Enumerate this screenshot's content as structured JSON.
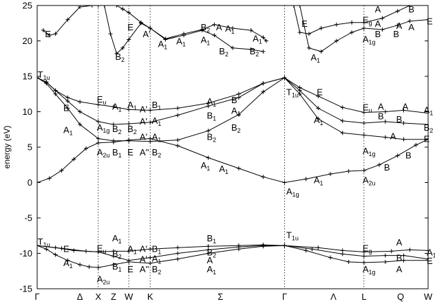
{
  "chart_data": {
    "type": "line",
    "ylabel": "energy (eV)",
    "ylim": [
      -15,
      25
    ],
    "yticks": [
      -15,
      -10,
      -5,
      0,
      5,
      10,
      15,
      20,
      25
    ],
    "kpath": {
      "labels": [
        "Γ",
        "Δ",
        "X",
        "Z",
        "W",
        "K",
        "Σ",
        "Γ",
        "Λ",
        "L",
        "Q",
        "W"
      ],
      "positions": [
        0,
        0.7,
        1.0,
        1.25,
        1.5,
        1.85,
        3.0,
        4.05,
        4.85,
        5.35,
        5.95,
        6.4
      ],
      "high_symmetry": [
        1.0,
        1.5,
        1.85,
        4.05,
        5.35
      ]
    },
    "series": [
      {
        "x": [
          0,
          0.15,
          0.3,
          0.5,
          0.7,
          0.85,
          1.0,
          1.25,
          1.5,
          1.85,
          2.3,
          2.8,
          3.3,
          3.7,
          4.05,
          4.4,
          4.8,
          5.1,
          5.35,
          5.7,
          6.0,
          6.4
        ],
        "y": [
          -8.9,
          -9.4,
          -10.2,
          -11.0,
          -11.6,
          -11.9,
          -12.0,
          -11.6,
          -11.2,
          -11.4,
          -10.8,
          -10.0,
          -9.4,
          -9.0,
          -8.9,
          -9.6,
          -10.6,
          -11.2,
          -11.3,
          -11.2,
          -11.0,
          -11.0
        ]
      },
      {
        "x": [
          0,
          0.3,
          0.6,
          1.0,
          1.25,
          1.5,
          1.85,
          2.3,
          2.8,
          3.3,
          3.7,
          4.05,
          4.5,
          5.0,
          5.35,
          5.7,
          6.0,
          6.4
        ],
        "y": [
          -8.9,
          -9.2,
          -9.6,
          -9.8,
          -10.4,
          -11.0,
          -10.6,
          -10.0,
          -9.5,
          -9.1,
          -8.9,
          -8.9,
          -9.4,
          -10.1,
          -10.4,
          -10.3,
          -10.3,
          -10.8
        ]
      },
      {
        "x": [
          0,
          0.4,
          0.8,
          1.0,
          1.25,
          1.5,
          1.85,
          2.3,
          2.8,
          3.3,
          3.7,
          4.05,
          4.6,
          5.0,
          5.35,
          5.8,
          6.1,
          6.4
        ],
        "y": [
          -8.9,
          -9.3,
          -9.7,
          -9.8,
          -9.7,
          -9.7,
          -9.4,
          -9.2,
          -9.0,
          -8.9,
          -8.8,
          -8.9,
          -9.2,
          -9.6,
          -9.8,
          -9.7,
          -9.5,
          -9.6
        ]
      },
      {
        "x": [
          0,
          0.2,
          0.4,
          0.6,
          0.8,
          1.0,
          1.25,
          1.5,
          1.85,
          2.3,
          2.8,
          3.3,
          3.7,
          4.05,
          4.4,
          4.8,
          5.1,
          5.35,
          5.6,
          5.9,
          6.2,
          6.4
        ],
        "y": [
          0.0,
          0.6,
          1.7,
          3.3,
          4.8,
          5.6,
          5.7,
          6.0,
          6.2,
          5.2,
          3.5,
          2.0,
          0.8,
          0.0,
          0.5,
          1.2,
          1.6,
          1.7,
          2.5,
          3.8,
          5.3,
          6.1
        ]
      },
      {
        "x": [
          0,
          0.15,
          0.3,
          0.5,
          0.7,
          1.0,
          1.25,
          1.5,
          1.85,
          2.3,
          2.8,
          3.3,
          3.7,
          4.05,
          4.3,
          4.6,
          5.0,
          5.35,
          5.7,
          6.0,
          6.4
        ],
        "y": [
          14.8,
          14.2,
          13.0,
          12.0,
          11.4,
          11.0,
          10.7,
          10.3,
          10.2,
          10.5,
          11.2,
          12.5,
          14.0,
          14.8,
          13.4,
          12.2,
          10.6,
          9.9,
          10.0,
          10.2,
          9.8
        ]
      },
      {
        "x": [
          0,
          0.15,
          0.3,
          0.5,
          0.7,
          1.0,
          1.25,
          1.5,
          1.85,
          2.3,
          2.8,
          3.3,
          3.7,
          4.05,
          4.3,
          4.6,
          5.0,
          5.35,
          5.7,
          6.0,
          6.4
        ],
        "y": [
          14.8,
          14.2,
          13.0,
          11.5,
          10.0,
          8.6,
          8.2,
          8.3,
          8.5,
          9.5,
          10.8,
          12.0,
          14.0,
          14.8,
          13.0,
          10.5,
          8.7,
          8.4,
          8.6,
          8.4,
          8.2
        ]
      },
      {
        "x": [
          0,
          0.15,
          0.3,
          0.5,
          0.7,
          1.0,
          1.25,
          1.5,
          1.85,
          2.3,
          2.8,
          3.3,
          3.7,
          4.05,
          4.3,
          4.6,
          5.0,
          5.35,
          5.7,
          6.0,
          6.4
        ],
        "y": [
          14.8,
          14.0,
          12.5,
          10.5,
          8.2,
          6.2,
          5.9,
          5.9,
          5.8,
          6.0,
          7.3,
          9.6,
          12.8,
          14.8,
          12.5,
          9.0,
          7.0,
          6.7,
          6.4,
          6.1,
          6.1
        ]
      },
      {
        "x": [
          0.1,
          0.2,
          0.3,
          0.5,
          0.7,
          0.9,
          1.0
        ],
        "y": [
          21.5,
          20.8,
          21.0,
          23.0,
          24.8,
          25.0,
          25.0
        ]
      },
      {
        "x": [
          1.1,
          1.2,
          1.3,
          1.4,
          1.5,
          1.7,
          1.85,
          2.1,
          2.4,
          2.7,
          2.9,
          3.2,
          3.5,
          3.7,
          3.75
        ],
        "y": [
          25.0,
          21.0,
          18.2,
          19.0,
          20.2,
          22.5,
          21.8,
          20.3,
          21.0,
          21.6,
          22.3,
          21.8,
          21.5,
          20.5,
          20.0
        ]
      },
      {
        "x": [
          1.3,
          1.4,
          1.5,
          1.7,
          1.85,
          2.1,
          2.4,
          2.7,
          2.9,
          3.2,
          3.5,
          3.7
        ],
        "y": [
          25.0,
          24.5,
          24.0,
          22.6,
          21.8,
          20.2,
          20.8,
          21.5,
          20.8,
          19.0,
          18.8,
          18.5
        ]
      },
      {
        "x": [
          4.2,
          4.3,
          4.45,
          4.65,
          4.9,
          5.15,
          5.35,
          5.65,
          5.9,
          6.1,
          6.4
        ],
        "y": [
          25.0,
          21.2,
          21.0,
          21.8,
          22.3,
          22.6,
          22.6,
          23.2,
          24.2,
          25.0,
          25.0
        ]
      },
      {
        "x": [
          4.3,
          4.45,
          4.65,
          4.9,
          5.15,
          5.35,
          5.65,
          5.9,
          6.1,
          6.4
        ],
        "y": [
          25.0,
          19.0,
          18.5,
          20.0,
          21.2,
          21.8,
          21.6,
          22.2,
          22.8,
          23.0
        ]
      }
    ],
    "labels": [
      {
        "text": "T",
        "sub": "1u",
        "x": 0.03,
        "y": 15.3
      },
      {
        "text": "E",
        "x": 0.45,
        "y": 10.6
      },
      {
        "text": "A",
        "sub": "1",
        "x": 0.45,
        "y": 7.5
      },
      {
        "text": "E",
        "sub": "u",
        "x": 1.0,
        "y": 11.8
      },
      {
        "text": "A",
        "sub": "1g",
        "x": 1.0,
        "y": 7.8
      },
      {
        "text": "A",
        "sub": "2u",
        "x": 1.0,
        "y": 4.3
      },
      {
        "text": "B",
        "sub": "2",
        "x": 1.25,
        "y": 7.6
      },
      {
        "text": "B",
        "sub": "1",
        "x": 1.25,
        "y": 4.3
      },
      {
        "text": "A",
        "sub": "1",
        "x": 1.25,
        "y": 10.8
      },
      {
        "text": "A",
        "sub": "1",
        "x": 1.5,
        "y": 11.0
      },
      {
        "text": "B",
        "sub": "2",
        "x": 1.5,
        "y": 7.6
      },
      {
        "text": "E",
        "x": 1.5,
        "y": 4.3
      },
      {
        "text": "A'",
        "x": 1.7,
        "y": 10.4
      },
      {
        "text": "A'",
        "x": 1.7,
        "y": 8.7
      },
      {
        "text": "A'",
        "x": 1.7,
        "y": 6.5
      },
      {
        "text": "A''",
        "x": 1.7,
        "y": 4.3
      },
      {
        "text": "B",
        "sub": "1",
        "x": 1.9,
        "y": 11.0
      },
      {
        "text": "A",
        "sub": "1",
        "x": 1.9,
        "y": 8.8
      },
      {
        "text": "A",
        "sub": "1",
        "x": 1.9,
        "y": 6.5
      },
      {
        "text": "B",
        "sub": "2",
        "x": 1.9,
        "y": 4.3
      },
      {
        "text": "A",
        "sub": "1",
        "x": 2.7,
        "y": 2.5
      },
      {
        "text": "A",
        "sub": "1",
        "x": 3.0,
        "y": 2.0
      },
      {
        "text": "B",
        "sub": "2",
        "x": 2.8,
        "y": 6.5
      },
      {
        "text": "B",
        "sub": "1",
        "x": 2.8,
        "y": 9.5
      },
      {
        "text": "A",
        "sub": "1",
        "x": 2.8,
        "y": 11.5
      },
      {
        "text": "B",
        "x": 3.2,
        "y": 11.7
      },
      {
        "text": "A",
        "sub": "1",
        "x": 3.2,
        "y": 10.2
      },
      {
        "text": "B",
        "sub": "2",
        "x": 3.2,
        "y": 7.8
      },
      {
        "text": "T",
        "sub": "1u",
        "x": 4.1,
        "y": 12.8
      },
      {
        "text": "E",
        "x": 4.6,
        "y": 12.8
      },
      {
        "text": "A",
        "sub": "1",
        "x": 4.55,
        "y": 8.9
      },
      {
        "text": "A",
        "sub": "1g",
        "x": 4.1,
        "y": -1.2
      },
      {
        "text": "A",
        "sub": "1",
        "x": 4.55,
        "y": 0.4
      },
      {
        "text": "E",
        "sub": "u",
        "x": 5.35,
        "y": 10.7
      },
      {
        "text": "B",
        "x": 5.6,
        "y": 9.4
      },
      {
        "text": "A",
        "x": 5.6,
        "y": 10.8
      },
      {
        "text": "B",
        "x": 5.9,
        "y": 9.0
      },
      {
        "text": "A",
        "x": 6.0,
        "y": 10.8
      },
      {
        "text": "B",
        "sub": "2",
        "x": 6.35,
        "y": 7.8
      },
      {
        "text": "A",
        "sub": "1",
        "x": 6.35,
        "y": 10.3
      },
      {
        "text": "A",
        "sub": "1g",
        "x": 5.35,
        "y": 4.5
      },
      {
        "text": "A",
        "x": 5.8,
        "y": 6.6
      },
      {
        "text": "E",
        "x": 6.35,
        "y": 6.2
      },
      {
        "text": "A",
        "sub": "2u",
        "x": 5.35,
        "y": 0.4
      },
      {
        "text": "B",
        "x": 5.7,
        "y": 2.2
      },
      {
        "text": "B",
        "x": 6.05,
        "y": 3.9
      },
      {
        "text": "E",
        "x": 0.15,
        "y": 21.0
      },
      {
        "text": "B",
        "sub": "2",
        "x": 1.3,
        "y": 17.8
      },
      {
        "text": "E",
        "x": 1.5,
        "y": 22.0
      },
      {
        "text": "A'",
        "x": 1.75,
        "y": 21.0
      },
      {
        "text": "A",
        "sub": "1",
        "x": 2.0,
        "y": 19.6
      },
      {
        "text": "A",
        "sub": "1",
        "x": 2.3,
        "y": 20.0
      },
      {
        "text": "B",
        "sub": "2",
        "x": 2.7,
        "y": 22.0
      },
      {
        "text": "A",
        "x": 2.95,
        "y": 22.0
      },
      {
        "text": "A",
        "sub": "1",
        "x": 3.1,
        "y": 21.8
      },
      {
        "text": "A",
        "sub": "1",
        "x": 2.7,
        "y": 20.2
      },
      {
        "text": "B",
        "sub": "2",
        "x": 3.0,
        "y": 18.6
      },
      {
        "text": "B",
        "sub": "2",
        "x": 3.5,
        "y": 18.6
      },
      {
        "text": "A",
        "sub": "1",
        "x": 3.55,
        "y": 20.4
      },
      {
        "text": "E",
        "x": 4.35,
        "y": 22.5
      },
      {
        "text": "A",
        "sub": "1",
        "x": 4.5,
        "y": 17.7
      },
      {
        "text": "E",
        "sub": "g",
        "x": 5.35,
        "y": 23.0
      },
      {
        "text": "A",
        "sub": "1g",
        "x": 5.35,
        "y": 20.3
      },
      {
        "text": "A",
        "x": 5.55,
        "y": 24.5
      },
      {
        "text": "B",
        "x": 5.55,
        "y": 21.0
      },
      {
        "text": "A",
        "x": 5.55,
        "y": 22.5
      },
      {
        "text": "B",
        "x": 5.85,
        "y": 21.0
      },
      {
        "text": "A",
        "x": 5.9,
        "y": 22.2
      },
      {
        "text": "B",
        "x": 6.1,
        "y": 24.5
      },
      {
        "text": "A",
        "x": 6.1,
        "y": 22.0
      },
      {
        "text": "E",
        "x": 6.4,
        "y": 22.8
      },
      {
        "text": "T",
        "sub": "1u",
        "x": 0.03,
        "y": -8.3
      },
      {
        "text": "E",
        "x": 0.45,
        "y": -9.3
      },
      {
        "text": "A",
        "sub": "1",
        "x": 0.45,
        "y": -11.3
      },
      {
        "text": "E",
        "sub": "u",
        "x": 1.0,
        "y": -9.2
      },
      {
        "text": "A",
        "sub": "2u",
        "x": 1.0,
        "y": -13.6
      },
      {
        "text": "A",
        "sub": "1",
        "x": 1.25,
        "y": -7.8
      },
      {
        "text": "B",
        "sub": "2",
        "x": 1.25,
        "y": -10.0
      },
      {
        "text": "B",
        "sub": "1",
        "x": 1.25,
        "y": -11.8
      },
      {
        "text": "A",
        "sub": "1",
        "x": 1.5,
        "y": -9.3
      },
      {
        "text": "E",
        "x": 1.5,
        "y": -12.2
      },
      {
        "text": "A'",
        "x": 1.7,
        "y": -9.3
      },
      {
        "text": "A'",
        "x": 1.7,
        "y": -10.8
      },
      {
        "text": "A''",
        "x": 1.7,
        "y": -12.2
      },
      {
        "text": "B",
        "sub": "1",
        "x": 1.9,
        "y": -9.3
      },
      {
        "text": "A",
        "sub": "1",
        "x": 1.9,
        "y": -10.7
      },
      {
        "text": "B",
        "sub": "2",
        "x": 1.9,
        "y": -12.2
      },
      {
        "text": "B",
        "sub": "1",
        "x": 2.8,
        "y": -7.8
      },
      {
        "text": "B",
        "sub": "2",
        "x": 2.8,
        "y": -9.8
      },
      {
        "text": "A",
        "x": 2.8,
        "y": -10.9
      },
      {
        "text": "A",
        "sub": "1",
        "x": 2.8,
        "y": -12.2
      },
      {
        "text": "T",
        "sub": "1u",
        "x": 4.1,
        "y": -7.4
      },
      {
        "text": "E",
        "sub": "g",
        "x": 5.35,
        "y": -9.2
      },
      {
        "text": "A",
        "sub": "1g",
        "x": 5.35,
        "y": -12.2
      },
      {
        "text": "A",
        "x": 5.9,
        "y": -8.4
      },
      {
        "text": "B",
        "x": 5.9,
        "y": -10.6
      },
      {
        "text": "A",
        "x": 5.9,
        "y": -12.2
      },
      {
        "text": "A",
        "sub": "1",
        "x": 6.4,
        "y": -9.8
      },
      {
        "text": "E",
        "x": 6.4,
        "y": -11.0
      }
    ]
  }
}
